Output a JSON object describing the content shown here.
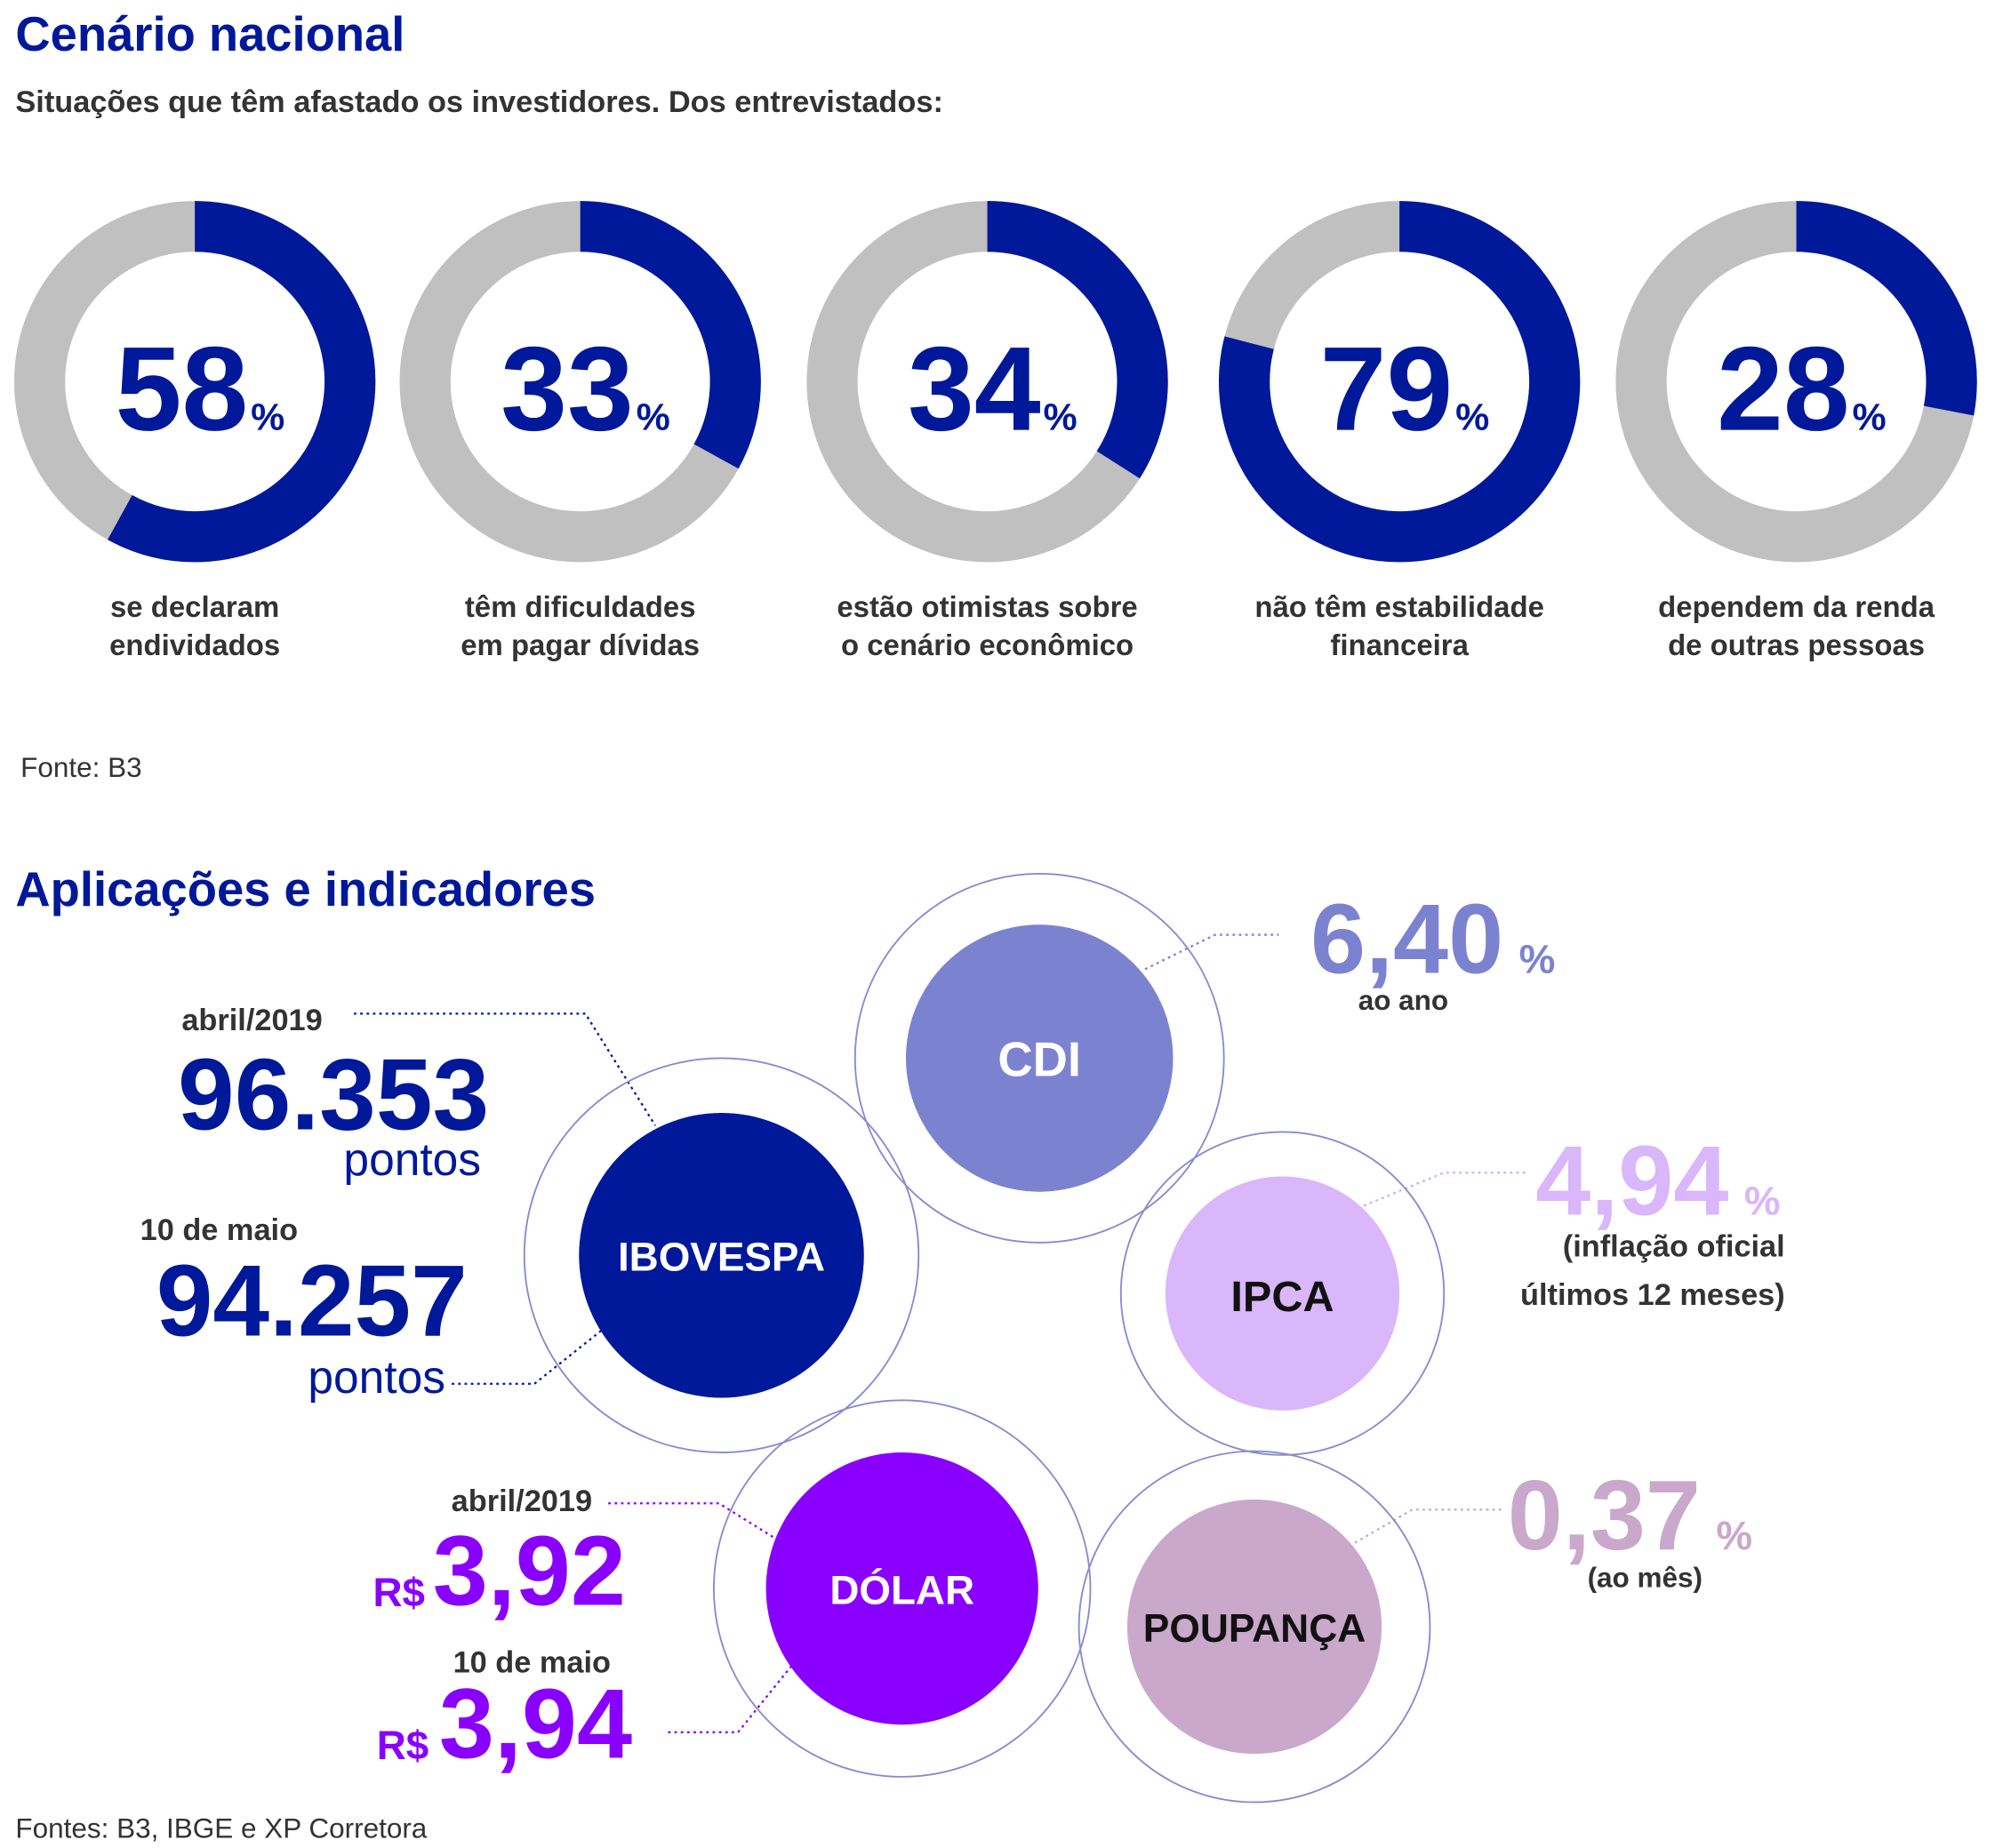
{
  "header": {
    "title": "Cenário nacional",
    "subtitle": "Situações que têm afastado os investidores. Dos entrevistados:"
  },
  "chart_data": {
    "type": "donut",
    "categories": [
      "se declaram\nendividados",
      "têm dificuldades\nem pagar dívidas",
      "estão otimistas sobre\no cenário econômico",
      "não têm estabilidade\nfinanceira",
      "dependem da renda\nde outras pessoas"
    ],
    "values": [
      58,
      33,
      34,
      79,
      28
    ],
    "unit": "%",
    "color": "#00189a",
    "track_color": "#c0c0c0"
  },
  "source": "Fonte: B3",
  "indicators": {
    "title": "Aplicações e indicadores",
    "ibovespa": {
      "name": "IBOVESPA",
      "readings": [
        {
          "date": "abril/2019",
          "value": "96.353",
          "unit": "pontos"
        },
        {
          "date": "10 de maio",
          "value": "94.257",
          "unit": "pontos"
        }
      ]
    },
    "cdi": {
      "name": "CDI",
      "value": "6,40",
      "unit": "%",
      "note": "ao ano"
    },
    "ipca": {
      "name": "IPCA",
      "value": "4,94",
      "unit": "%",
      "note": [
        "(inflação oficial",
        "últimos 12 meses)"
      ]
    },
    "dolar": {
      "name": "DÓLAR",
      "readings": [
        {
          "date": "abril/2019",
          "currency": "R$",
          "value": "3,92"
        },
        {
          "date": "10 de maio",
          "currency": "R$",
          "value": "3,94"
        }
      ]
    },
    "poupanca": {
      "name": "POUPANÇA",
      "value": "0,37",
      "unit": "%",
      "note": "(ao mês)"
    },
    "source": "Fontes: B3, IBGE e XP Corretora"
  }
}
